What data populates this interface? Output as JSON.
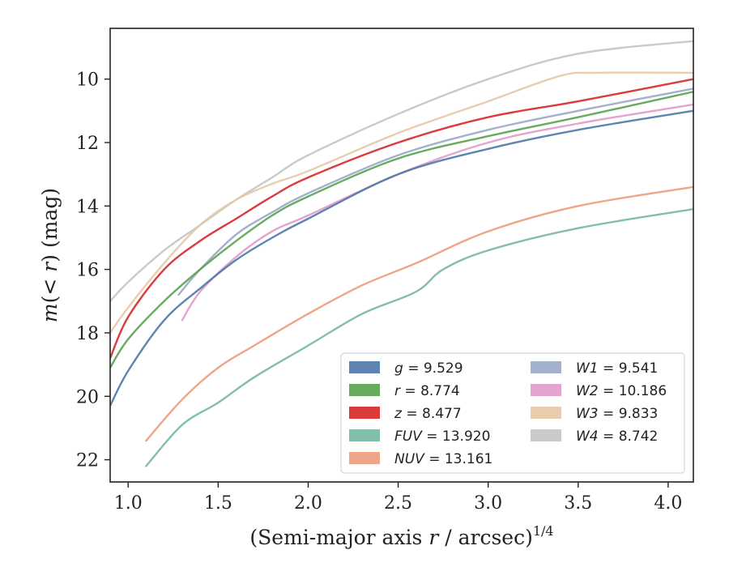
{
  "chart_data": {
    "type": "line",
    "xlabel": "(Semi-major axis r / arcsec)",
    "xlabel_main": "(Semi-major axis ",
    "xlabel_var": "r",
    "xlabel_tail": " / arcsec)",
    "xlabel_sup": "1/4",
    "ylabel_pre": "m(< ",
    "ylabel_var": "r",
    "ylabel_post": ") (mag)",
    "xlim": [
      0.9,
      4.14
    ],
    "ylim": [
      22.7,
      8.4
    ],
    "y_inverted": true,
    "x_ticks": [
      "1.0",
      "1.5",
      "2.0",
      "2.5",
      "3.0",
      "3.5",
      "4.0"
    ],
    "y_ticks": [
      "10",
      "12",
      "14",
      "16",
      "18",
      "20",
      "22"
    ],
    "legend_placement": "lower-right",
    "grid": false,
    "series": [
      {
        "key": "g",
        "label": "g = 9.529",
        "name": "g",
        "value": "9.529",
        "color": "#4c78a8",
        "x": [
          0.9,
          1.0,
          1.2,
          1.4,
          1.6,
          1.8,
          2.0,
          2.5,
          3.0,
          3.5,
          4.14
        ],
        "y": [
          20.3,
          19.2,
          17.6,
          16.6,
          15.7,
          15.0,
          14.4,
          13.0,
          12.2,
          11.6,
          11.0
        ]
      },
      {
        "key": "r",
        "label": "r = 8.774",
        "name": "r",
        "value": "8.774",
        "color": "#59a14f",
        "x": [
          0.9,
          1.0,
          1.2,
          1.4,
          1.6,
          1.8,
          2.0,
          2.5,
          3.0,
          3.5,
          4.14
        ],
        "y": [
          19.1,
          18.2,
          17.0,
          16.0,
          15.1,
          14.3,
          13.7,
          12.5,
          11.8,
          11.2,
          10.4
        ]
      },
      {
        "key": "z",
        "label": "z = 8.477",
        "name": "z",
        "value": "8.477",
        "color": "#d62728",
        "x": [
          0.9,
          1.0,
          1.2,
          1.4,
          1.6,
          1.8,
          2.0,
          2.5,
          3.0,
          3.5,
          4.14
        ],
        "y": [
          18.8,
          17.5,
          16.0,
          15.1,
          14.4,
          13.7,
          13.1,
          12.0,
          11.2,
          10.7,
          10.0
        ]
      },
      {
        "key": "FUV",
        "label": "FUV = 13.920",
        "name": "FUV",
        "value": "13.920",
        "color": "#76b7a2",
        "x": [
          1.1,
          1.3,
          1.5,
          1.7,
          2.0,
          2.3,
          2.6,
          2.75,
          3.0,
          3.5,
          4.14
        ],
        "y": [
          22.2,
          20.9,
          20.2,
          19.4,
          18.4,
          17.4,
          16.7,
          16.0,
          15.4,
          14.7,
          14.1
        ]
      },
      {
        "key": "NUV",
        "label": "NUV = 13.161",
        "name": "NUV",
        "value": "13.161",
        "color": "#ed9b7b",
        "x": [
          1.1,
          1.3,
          1.5,
          1.7,
          2.0,
          2.3,
          2.6,
          3.0,
          3.5,
          4.14
        ],
        "y": [
          21.4,
          20.1,
          19.1,
          18.4,
          17.4,
          16.5,
          15.8,
          14.8,
          14.0,
          13.4
        ]
      },
      {
        "key": "W1",
        "label": "W1 = 9.541",
        "name": "W1",
        "value": "9.541",
        "color": "#9aa8c8",
        "x": [
          1.28,
          1.4,
          1.6,
          1.8,
          2.0,
          2.5,
          3.0,
          3.5,
          4.14
        ],
        "y": [
          16.8,
          16.0,
          14.9,
          14.2,
          13.6,
          12.4,
          11.6,
          11.0,
          10.3
        ]
      },
      {
        "key": "W2",
        "label": "W2 = 10.186",
        "name": "W2",
        "value": "10.186",
        "color": "#e09ac8",
        "x": [
          1.3,
          1.4,
          1.6,
          1.8,
          2.0,
          2.5,
          3.0,
          3.5,
          4.14
        ],
        "y": [
          17.6,
          16.7,
          15.6,
          14.8,
          14.3,
          13.0,
          12.0,
          11.4,
          10.8
        ]
      },
      {
        "key": "W3",
        "label": "W3 = 9.833",
        "name": "W3",
        "value": "9.833",
        "color": "#e6c9a6",
        "x": [
          0.9,
          1.0,
          1.2,
          1.4,
          1.6,
          1.8,
          2.0,
          2.5,
          3.0,
          3.4,
          3.6,
          4.14
        ],
        "y": [
          18.0,
          17.2,
          15.8,
          14.6,
          13.8,
          13.3,
          12.9,
          11.7,
          10.7,
          9.9,
          9.8,
          9.8
        ]
      },
      {
        "key": "W4",
        "label": "W4 = 8.742",
        "name": "W4",
        "value": "8.742",
        "color": "#c4c4c4",
        "x": [
          0.9,
          1.0,
          1.2,
          1.4,
          1.6,
          1.8,
          2.0,
          2.5,
          3.0,
          3.5,
          4.14
        ],
        "y": [
          17.0,
          16.4,
          15.4,
          14.6,
          13.8,
          13.1,
          12.4,
          11.1,
          10.0,
          9.2,
          8.8
        ]
      }
    ]
  }
}
